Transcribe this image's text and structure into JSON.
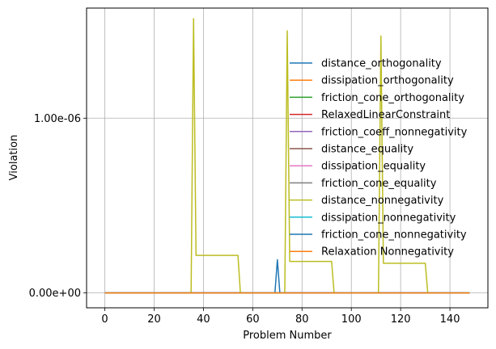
{
  "chart_data": {
    "type": "line",
    "title": "",
    "xlabel": "Problem Number",
    "ylabel": "Violation",
    "xlim": [
      -7.4,
      155.4
    ],
    "ylim": [
      -8.5e-08,
      1.63e-06
    ],
    "xticks": [
      0,
      20,
      40,
      60,
      80,
      100,
      120,
      140
    ],
    "xtick_labels": [
      "0",
      "20",
      "40",
      "60",
      "80",
      "100",
      "120",
      "140"
    ],
    "yticks": [
      0,
      1e-06
    ],
    "ytick_labels": [
      "0.00e+00",
      "1.00e-06"
    ],
    "grid": true,
    "legend_position": "upper-right",
    "series": [
      {
        "name": "distance_orthogonality",
        "color": "#1f77b4",
        "x": [
          0,
          69,
          70,
          71,
          148
        ],
        "y": [
          0,
          0,
          1.9e-07,
          0,
          0
        ]
      },
      {
        "name": "dissipation_orthogonality",
        "color": "#ff7f0e",
        "x": [
          0,
          148
        ],
        "y": [
          0,
          0
        ]
      },
      {
        "name": "friction_cone_orthogonality",
        "color": "#2ca02c",
        "x": [
          0,
          148
        ],
        "y": [
          0,
          0
        ]
      },
      {
        "name": "RelaxedLinearConstraint",
        "color": "#d62728",
        "x": [
          0,
          148
        ],
        "y": [
          0,
          0
        ]
      },
      {
        "name": "friction_coeff_nonnegativity",
        "color": "#9467bd",
        "x": [
          0,
          148
        ],
        "y": [
          0,
          0
        ]
      },
      {
        "name": "distance_equality",
        "color": "#8c564b",
        "x": [
          0,
          148
        ],
        "y": [
          0,
          0
        ]
      },
      {
        "name": "dissipation_equality",
        "color": "#e377c2",
        "x": [
          0,
          148
        ],
        "y": [
          0,
          0
        ]
      },
      {
        "name": "friction_cone_equality",
        "color": "#7f7f7f",
        "x": [
          0,
          148
        ],
        "y": [
          0,
          0
        ]
      },
      {
        "name": "distance_nonnegativity",
        "color": "#bcbd22",
        "x": [
          0,
          35,
          36,
          37,
          54,
          55,
          73,
          74,
          75,
          92,
          93,
          111,
          112,
          113,
          130,
          131,
          148
        ],
        "y": [
          0,
          0,
          1.57e-06,
          2.15e-07,
          2.15e-07,
          0,
          0,
          1.5e-06,
          1.8e-07,
          1.8e-07,
          0,
          0,
          1.47e-06,
          1.7e-07,
          1.7e-07,
          0,
          0
        ]
      },
      {
        "name": "dissipation_nonnegativity",
        "color": "#17becf",
        "x": [
          0,
          148
        ],
        "y": [
          0,
          0
        ]
      },
      {
        "name": "friction_cone_nonnegativity",
        "color": "#1f77b4",
        "x": [
          0,
          148
        ],
        "y": [
          0,
          0
        ]
      },
      {
        "name": "Relaxation Nonnegativity",
        "color": "#ff7f0e",
        "x": [
          0,
          148
        ],
        "y": [
          0,
          0
        ]
      }
    ]
  }
}
